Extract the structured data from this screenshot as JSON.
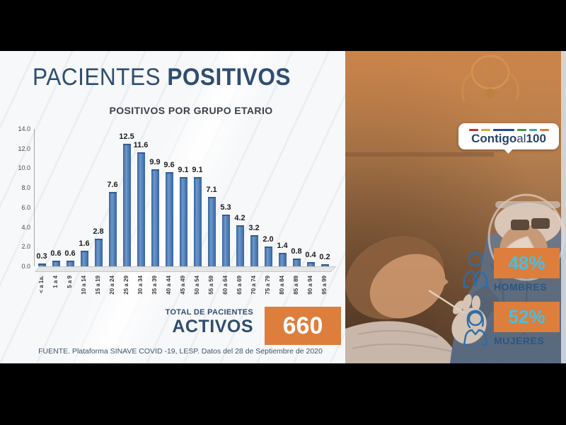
{
  "page": {
    "title_part1": "PACIENTES",
    "title_part2": "POSITIVOS",
    "source": "FUENTE. Plataforma SINAVE COVID -19, LESP. Datos del 28 de Septiembre de 2020"
  },
  "chart_data": {
    "type": "bar",
    "title": "POSITIVOS POR GRUPO ETARIO",
    "categories": [
      "< a 1a.",
      "1 a 4",
      "5 a 9",
      "10 a 14",
      "15 a 19",
      "20 a 24",
      "25 a 29",
      "30 a 34",
      "35 a 39",
      "40 a 44",
      "45 a 49",
      "50 a 54",
      "55 a 59",
      "60 a 64",
      "65 a 69",
      "70 a 74",
      "75 a 79",
      "80 a 84",
      "85 a 89",
      "90 a 94",
      "95 a 99"
    ],
    "values": [
      0.3,
      0.6,
      0.6,
      1.6,
      2.8,
      7.6,
      12.5,
      11.6,
      9.9,
      9.6,
      9.1,
      9.1,
      7.1,
      5.3,
      4.2,
      3.2,
      2.0,
      1.4,
      0.8,
      0.4,
      0.2
    ],
    "xlabel": "",
    "ylabel": "",
    "ylim": [
      0,
      14
    ],
    "ytick_step": 2,
    "grid": false,
    "legend": "none",
    "value_labels": true,
    "bar_color": "#4A7DBA"
  },
  "total": {
    "label_line1": "TOTAL DE PACIENTES",
    "label_line2": "ACTIVOS",
    "value": "660"
  },
  "logo": {
    "word1": "Contigo",
    "word2": "al",
    "word3": "100",
    "dash_colors": [
      "#B5342C",
      "#E3A23C",
      "#27498F",
      "#44953F",
      "#3AA9A0",
      "#DD7E3C"
    ]
  },
  "gender_stats": [
    {
      "percent": "48%",
      "label": "HOMBRES",
      "icon": "man-icon"
    },
    {
      "percent": "52%",
      "label": "MUJERES",
      "icon": "woman-icon"
    }
  ],
  "colors": {
    "accent_orange": "#DD7E3C",
    "percent_cyan": "#41C0E8",
    "title_blue": "#2E4E70",
    "bar_blue": "#4A7DBA"
  }
}
